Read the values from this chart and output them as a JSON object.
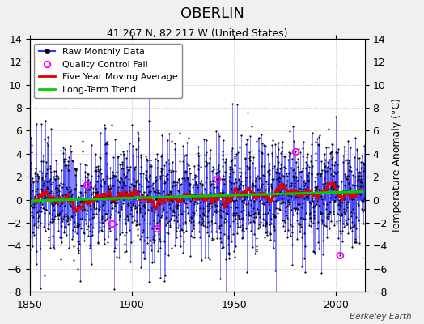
{
  "title": "OBERLIN",
  "subtitle": "41.267 N, 82.217 W (United States)",
  "ylabel": "Temperature Anomaly (°C)",
  "credit": "Berkeley Earth",
  "xlim": [
    1850,
    2014
  ],
  "ylim": [
    -8,
    14
  ],
  "yticks": [
    -8,
    -6,
    -4,
    -2,
    0,
    2,
    4,
    6,
    8,
    10,
    12,
    14
  ],
  "xticks": [
    1850,
    1900,
    1950,
    2000
  ],
  "seed": 17,
  "n_years_start": 1850,
  "n_years_end": 2013,
  "raw_color": "#3333ff",
  "qc_color": "#ff00ff",
  "moving_avg_color": "#dd0000",
  "trend_color": "#00cc00",
  "plot_bg_color": "#ffffff",
  "fig_bg_color": "#f0f0f0",
  "title_fontsize": 13,
  "subtitle_fontsize": 9,
  "tick_fontsize": 9,
  "legend_fontsize": 8
}
